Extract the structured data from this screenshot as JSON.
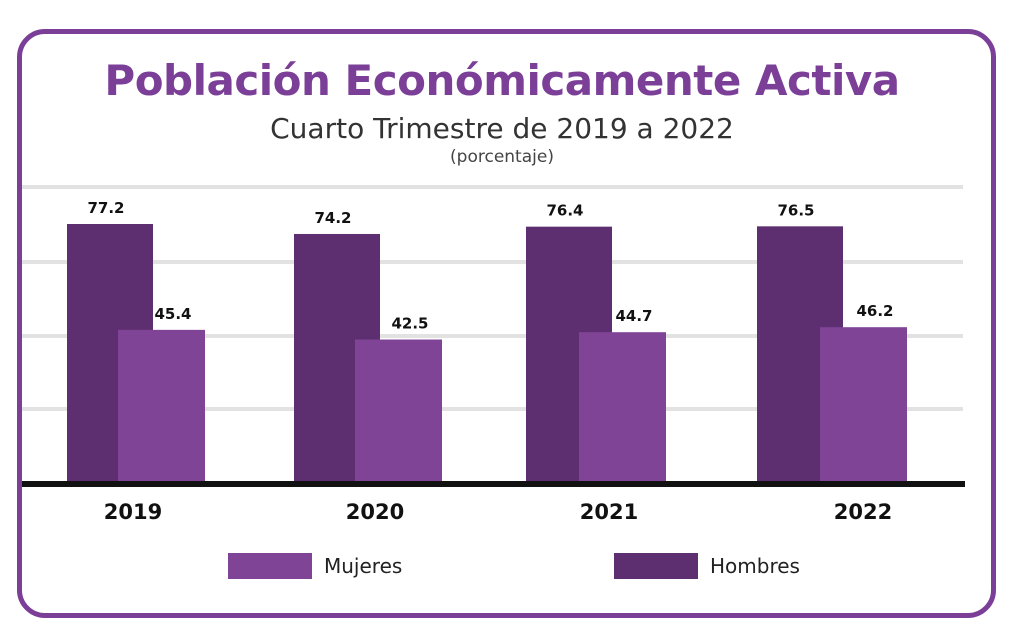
{
  "title": "Población Económicamente Activa",
  "subtitle": "Cuarto Trimestre de 2019 a 2022",
  "unit_note": "(porcentaje)",
  "colors": {
    "frame": "#7b3f98",
    "title": "#7b3f98",
    "hombres": "#5e2f70",
    "mujeres": "#7f4496",
    "grid": "#e2e2e2",
    "baseline": "#111111"
  },
  "legend": [
    {
      "label": "Mujeres",
      "color": "#7f4496"
    },
    {
      "label": "Hombres",
      "color": "#5e2f70"
    }
  ],
  "chart_data": {
    "type": "bar",
    "title": "Población Económicamente Activa",
    "subtitle": "Cuarto Trimestre de 2019 a 2022",
    "categories": [
      "2019",
      "2020",
      "2021",
      "2022"
    ],
    "series": [
      {
        "name": "Hombres",
        "values": [
          77.2,
          74.2,
          76.4,
          76.5
        ],
        "labels": [
          "77.2",
          "74.2",
          "76.4",
          "76.5"
        ]
      },
      {
        "name": "Mujeres",
        "values": [
          45.4,
          42.5,
          44.7,
          46.2
        ],
        "labels": [
          "45.4",
          "42.5",
          "44.7",
          "46.2"
        ]
      }
    ],
    "grid": true,
    "legend_position": "bottom"
  }
}
